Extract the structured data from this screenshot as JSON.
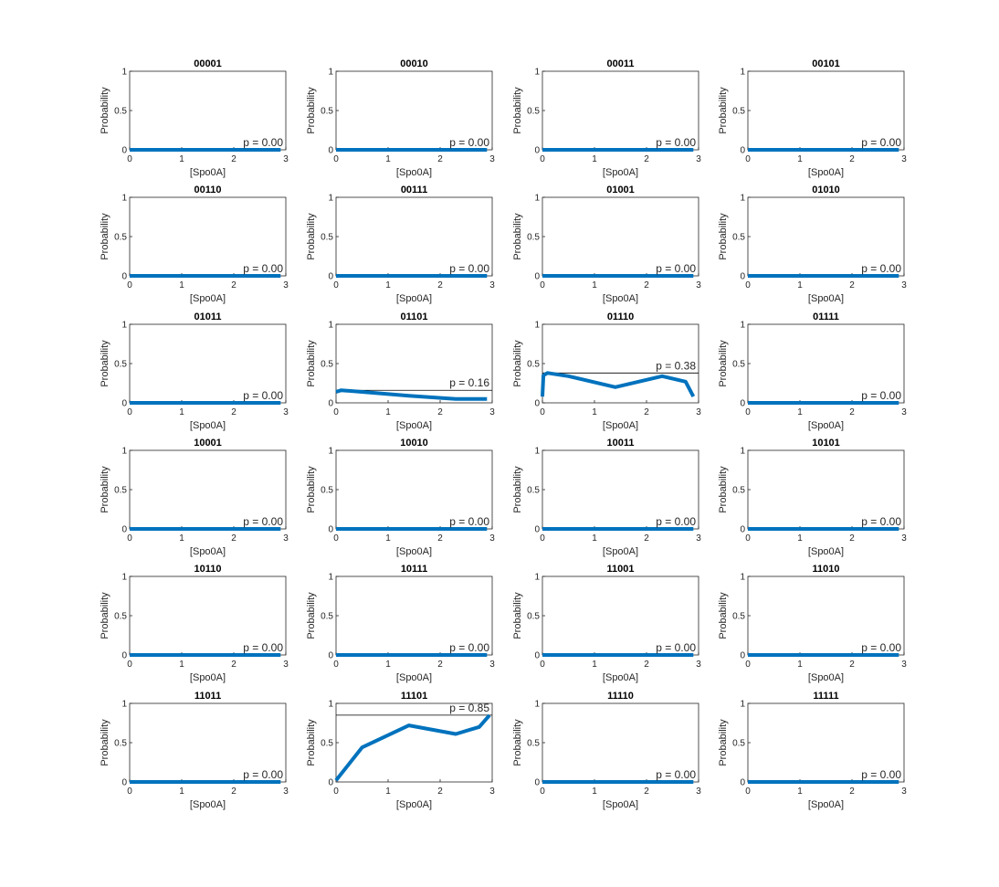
{
  "colors": {
    "series": "#0072BD",
    "axes": "#262626",
    "ref_line": "#000000"
  },
  "chart_data": [
    {
      "type": "line",
      "title": "00001",
      "xlabel": "[Spo0A]",
      "ylabel": "Probability",
      "xlim": [
        0,
        3
      ],
      "ylim": [
        0,
        1
      ],
      "xticks": [
        "0",
        "1",
        "2",
        "3"
      ],
      "yticks": [
        "0",
        "0.5",
        "1"
      ],
      "annotation": "p = 0.00",
      "ref_value": 0.0,
      "x": [
        0,
        2.9
      ],
      "y": [
        0,
        0
      ]
    },
    {
      "type": "line",
      "title": "00010",
      "xlabel": "[Spo0A]",
      "ylabel": "Probability",
      "xlim": [
        0,
        3
      ],
      "ylim": [
        0,
        1
      ],
      "xticks": [
        "0",
        "1",
        "2",
        "3"
      ],
      "yticks": [
        "0",
        "0.5",
        "1"
      ],
      "annotation": "p = 0.00",
      "ref_value": 0.0,
      "x": [
        0,
        2.9
      ],
      "y": [
        0,
        0
      ]
    },
    {
      "type": "line",
      "title": "00011",
      "xlabel": "[Spo0A]",
      "ylabel": "Probability",
      "xlim": [
        0,
        3
      ],
      "ylim": [
        0,
        1
      ],
      "xticks": [
        "0",
        "1",
        "2",
        "3"
      ],
      "yticks": [
        "0",
        "0.5",
        "1"
      ],
      "annotation": "p = 0.00",
      "ref_value": 0.0,
      "x": [
        0,
        2.9
      ],
      "y": [
        0,
        0
      ]
    },
    {
      "type": "line",
      "title": "00101",
      "xlabel": "[Spo0A]",
      "ylabel": "Probability",
      "xlim": [
        0,
        3
      ],
      "ylim": [
        0,
        1
      ],
      "xticks": [
        "0",
        "1",
        "2",
        "3"
      ],
      "yticks": [
        "0",
        "0.5",
        "1"
      ],
      "annotation": "p = 0.00",
      "ref_value": 0.0,
      "x": [
        0,
        2.9
      ],
      "y": [
        0,
        0
      ]
    },
    {
      "type": "line",
      "title": "00110",
      "xlabel": "[Spo0A]",
      "ylabel": "Probability",
      "xlim": [
        0,
        3
      ],
      "ylim": [
        0,
        1
      ],
      "xticks": [
        "0",
        "1",
        "2",
        "3"
      ],
      "yticks": [
        "0",
        "0.5",
        "1"
      ],
      "annotation": "p = 0.00",
      "ref_value": 0.0,
      "x": [
        0,
        2.9
      ],
      "y": [
        0,
        0
      ]
    },
    {
      "type": "line",
      "title": "00111",
      "xlabel": "[Spo0A]",
      "ylabel": "Probability",
      "xlim": [
        0,
        3
      ],
      "ylim": [
        0,
        1
      ],
      "xticks": [
        "0",
        "1",
        "2",
        "3"
      ],
      "yticks": [
        "0",
        "0.5",
        "1"
      ],
      "annotation": "p = 0.00",
      "ref_value": 0.0,
      "x": [
        0,
        2.9
      ],
      "y": [
        0,
        0
      ]
    },
    {
      "type": "line",
      "title": "01001",
      "xlabel": "[Spo0A]",
      "ylabel": "Probability",
      "xlim": [
        0,
        3
      ],
      "ylim": [
        0,
        1
      ],
      "xticks": [
        "0",
        "1",
        "2",
        "3"
      ],
      "yticks": [
        "0",
        "0.5",
        "1"
      ],
      "annotation": "p = 0.00",
      "ref_value": 0.0,
      "x": [
        0,
        2.9
      ],
      "y": [
        0,
        0
      ]
    },
    {
      "type": "line",
      "title": "01010",
      "xlabel": "[Spo0A]",
      "ylabel": "Probability",
      "xlim": [
        0,
        3
      ],
      "ylim": [
        0,
        1
      ],
      "xticks": [
        "0",
        "1",
        "2",
        "3"
      ],
      "yticks": [
        "0",
        "0.5",
        "1"
      ],
      "annotation": "p = 0.00",
      "ref_value": 0.0,
      "x": [
        0,
        2.9
      ],
      "y": [
        0,
        0
      ]
    },
    {
      "type": "line",
      "title": "01011",
      "xlabel": "[Spo0A]",
      "ylabel": "Probability",
      "xlim": [
        0,
        3
      ],
      "ylim": [
        0,
        1
      ],
      "xticks": [
        "0",
        "1",
        "2",
        "3"
      ],
      "yticks": [
        "0",
        "0.5",
        "1"
      ],
      "annotation": "p = 0.00",
      "ref_value": 0.0,
      "x": [
        0,
        2.9
      ],
      "y": [
        0,
        0
      ]
    },
    {
      "type": "line",
      "title": "01101",
      "xlabel": "[Spo0A]",
      "ylabel": "Probability",
      "xlim": [
        0,
        3
      ],
      "ylim": [
        0,
        1
      ],
      "xticks": [
        "0",
        "1",
        "2",
        "3"
      ],
      "yticks": [
        "0",
        "0.5",
        "1"
      ],
      "annotation": "p = 0.16",
      "ref_value": 0.16,
      "x": [
        0,
        0.1,
        0.5,
        1.4,
        2.3,
        2.7,
        2.9
      ],
      "y": [
        0.14,
        0.16,
        0.14,
        0.09,
        0.05,
        0.05,
        0.05
      ]
    },
    {
      "type": "line",
      "title": "01110",
      "xlabel": "[Spo0A]",
      "ylabel": "Probability",
      "xlim": [
        0,
        3
      ],
      "ylim": [
        0,
        1
      ],
      "xticks": [
        "0",
        "1",
        "2",
        "3"
      ],
      "yticks": [
        "0",
        "0.5",
        "1"
      ],
      "annotation": "p = 0.38",
      "ref_value": 0.38,
      "x": [
        0,
        0.02,
        0.1,
        0.5,
        1.4,
        2.3,
        2.75,
        2.9
      ],
      "y": [
        0.08,
        0.35,
        0.38,
        0.34,
        0.2,
        0.34,
        0.27,
        0.08
      ]
    },
    {
      "type": "line",
      "title": "01111",
      "xlabel": "[Spo0A]",
      "ylabel": "Probability",
      "xlim": [
        0,
        3
      ],
      "ylim": [
        0,
        1
      ],
      "xticks": [
        "0",
        "1",
        "2",
        "3"
      ],
      "yticks": [
        "0",
        "0.5",
        "1"
      ],
      "annotation": "p = 0.00",
      "ref_value": 0.0,
      "x": [
        0,
        2.9
      ],
      "y": [
        0,
        0
      ]
    },
    {
      "type": "line",
      "title": "10001",
      "xlabel": "[Spo0A]",
      "ylabel": "Probability",
      "xlim": [
        0,
        3
      ],
      "ylim": [
        0,
        1
      ],
      "xticks": [
        "0",
        "1",
        "2",
        "3"
      ],
      "yticks": [
        "0",
        "0.5",
        "1"
      ],
      "annotation": "p = 0.00",
      "ref_value": 0.0,
      "x": [
        0,
        2.9
      ],
      "y": [
        0,
        0
      ]
    },
    {
      "type": "line",
      "title": "10010",
      "xlabel": "[Spo0A]",
      "ylabel": "Probability",
      "xlim": [
        0,
        3
      ],
      "ylim": [
        0,
        1
      ],
      "xticks": [
        "0",
        "1",
        "2",
        "3"
      ],
      "yticks": [
        "0",
        "0.5",
        "1"
      ],
      "annotation": "p = 0.00",
      "ref_value": 0.0,
      "x": [
        0,
        2.9
      ],
      "y": [
        0,
        0
      ]
    },
    {
      "type": "line",
      "title": "10011",
      "xlabel": "[Spo0A]",
      "ylabel": "Probability",
      "xlim": [
        0,
        3
      ],
      "ylim": [
        0,
        1
      ],
      "xticks": [
        "0",
        "1",
        "2",
        "3"
      ],
      "yticks": [
        "0",
        "0.5",
        "1"
      ],
      "annotation": "p = 0.00",
      "ref_value": 0.0,
      "x": [
        0,
        2.9
      ],
      "y": [
        0,
        0
      ]
    },
    {
      "type": "line",
      "title": "10101",
      "xlabel": "[Spo0A]",
      "ylabel": "Probability",
      "xlim": [
        0,
        3
      ],
      "ylim": [
        0,
        1
      ],
      "xticks": [
        "0",
        "1",
        "2",
        "3"
      ],
      "yticks": [
        "0",
        "0.5",
        "1"
      ],
      "annotation": "p = 0.00",
      "ref_value": 0.0,
      "x": [
        0,
        2.9
      ],
      "y": [
        0,
        0
      ]
    },
    {
      "type": "line",
      "title": "10110",
      "xlabel": "[Spo0A]",
      "ylabel": "Probability",
      "xlim": [
        0,
        3
      ],
      "ylim": [
        0,
        1
      ],
      "xticks": [
        "0",
        "1",
        "2",
        "3"
      ],
      "yticks": [
        "0",
        "0.5",
        "1"
      ],
      "annotation": "p = 0.00",
      "ref_value": 0.0,
      "x": [
        0,
        2.9
      ],
      "y": [
        0,
        0
      ]
    },
    {
      "type": "line",
      "title": "10111",
      "xlabel": "[Spo0A]",
      "ylabel": "Probability",
      "xlim": [
        0,
        3
      ],
      "ylim": [
        0,
        1
      ],
      "xticks": [
        "0",
        "1",
        "2",
        "3"
      ],
      "yticks": [
        "0",
        "0.5",
        "1"
      ],
      "annotation": "p = 0.00",
      "ref_value": 0.0,
      "x": [
        0,
        2.9
      ],
      "y": [
        0,
        0
      ]
    },
    {
      "type": "line",
      "title": "11001",
      "xlabel": "[Spo0A]",
      "ylabel": "Probability",
      "xlim": [
        0,
        3
      ],
      "ylim": [
        0,
        1
      ],
      "xticks": [
        "0",
        "1",
        "2",
        "3"
      ],
      "yticks": [
        "0",
        "0.5",
        "1"
      ],
      "annotation": "p = 0.00",
      "ref_value": 0.0,
      "x": [
        0,
        2.9
      ],
      "y": [
        0,
        0
      ]
    },
    {
      "type": "line",
      "title": "11010",
      "xlabel": "[Spo0A]",
      "ylabel": "Probability",
      "xlim": [
        0,
        3
      ],
      "ylim": [
        0,
        1
      ],
      "xticks": [
        "0",
        "1",
        "2",
        "3"
      ],
      "yticks": [
        "0",
        "0.5",
        "1"
      ],
      "annotation": "p = 0.00",
      "ref_value": 0.0,
      "x": [
        0,
        2.9
      ],
      "y": [
        0,
        0
      ]
    },
    {
      "type": "line",
      "title": "11011",
      "xlabel": "[Spo0A]",
      "ylabel": "Probability",
      "xlim": [
        0,
        3
      ],
      "ylim": [
        0,
        1
      ],
      "xticks": [
        "0",
        "1",
        "2",
        "3"
      ],
      "yticks": [
        "0",
        "0.5",
        "1"
      ],
      "annotation": "p = 0.00",
      "ref_value": 0.0,
      "x": [
        0,
        2.9
      ],
      "y": [
        0,
        0
      ]
    },
    {
      "type": "line",
      "title": "11101",
      "xlabel": "[Spo0A]",
      "ylabel": "Probability",
      "xlim": [
        0,
        3
      ],
      "ylim": [
        0,
        1
      ],
      "xticks": [
        "0",
        "1",
        "2",
        "3"
      ],
      "yticks": [
        "0",
        "0.5",
        "1"
      ],
      "annotation": "p = 0.85",
      "ref_value": 0.85,
      "x": [
        0,
        0.5,
        1.4,
        2.3,
        2.75,
        2.95
      ],
      "y": [
        0.02,
        0.44,
        0.72,
        0.61,
        0.7,
        0.85
      ]
    },
    {
      "type": "line",
      "title": "11110",
      "xlabel": "[Spo0A]",
      "ylabel": "Probability",
      "xlim": [
        0,
        3
      ],
      "ylim": [
        0,
        1
      ],
      "xticks": [
        "0",
        "1",
        "2",
        "3"
      ],
      "yticks": [
        "0",
        "0.5",
        "1"
      ],
      "annotation": "p = 0.00",
      "ref_value": 0.0,
      "x": [
        0,
        2.9
      ],
      "y": [
        0,
        0
      ]
    },
    {
      "type": "line",
      "title": "11111",
      "xlabel": "[Spo0A]",
      "ylabel": "Probability",
      "xlim": [
        0,
        3
      ],
      "ylim": [
        0,
        1
      ],
      "xticks": [
        "0",
        "1",
        "2",
        "3"
      ],
      "yticks": [
        "0",
        "0.5",
        "1"
      ],
      "annotation": "p = 0.00",
      "ref_value": 0.0,
      "x": [
        0,
        2.9
      ],
      "y": [
        0,
        0
      ]
    }
  ]
}
